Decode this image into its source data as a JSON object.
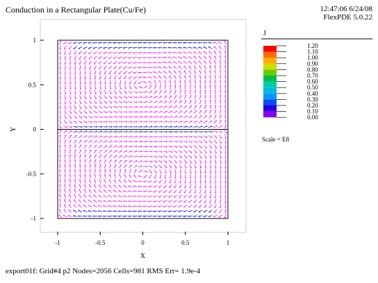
{
  "header": {
    "title": "Conduction in a Rectangular Plate(Cu/Fe)",
    "time": "12:47:06 6/24/08",
    "version": "FlexPDE 5.0.22"
  },
  "footer": {
    "status": "export01f:  Grid#4  p2  Nodes=2056 Cells=981 RMS Err= 1.9e-4"
  },
  "chart_data": {
    "type": "vector-field",
    "title": "Conduction in a Rectangular Plate(Cu/Fe)",
    "xlabel": "X",
    "ylabel": "Y",
    "xlim": [
      -1.1,
      1.1
    ],
    "ylim": [
      -1.12,
      1.12
    ],
    "xticks": [
      -1,
      -0.5,
      0,
      0.5,
      1
    ],
    "xtick_labels": [
      "-1",
      "-0.5",
      "0",
      "0.5",
      "1"
    ],
    "yticks": [
      1,
      0.5,
      0,
      -0.5,
      -1
    ],
    "ytick_labels": [
      "1",
      "0.5",
      "0",
      "-0.5",
      "-1"
    ],
    "region": {
      "xmin": -1,
      "xmax": 1,
      "ymin": -1,
      "ymax": 1,
      "interface_y": 0
    },
    "legend": {
      "variable": "J",
      "scale_label": "Scale = E8",
      "levels": [
        "1.20",
        "1.10",
        "1.00",
        "0.90",
        "0.80",
        "0.70",
        "0.60",
        "0.50",
        "0.40",
        "0.30",
        "0.20",
        "0.10",
        "0.00"
      ],
      "colors": [
        "#ff0000",
        "#ff6a00",
        "#ffaa00",
        "#ccdd00",
        "#66cc00",
        "#00bb44",
        "#00ccaa",
        "#00bbdd",
        "#0099ff",
        "#1144ff",
        "#2200dd",
        "#8800ee",
        "#ff00ff"
      ]
    },
    "arrow_color": "#ff00ff",
    "arrow_accent_color": "#0000cc",
    "grid": false
  }
}
